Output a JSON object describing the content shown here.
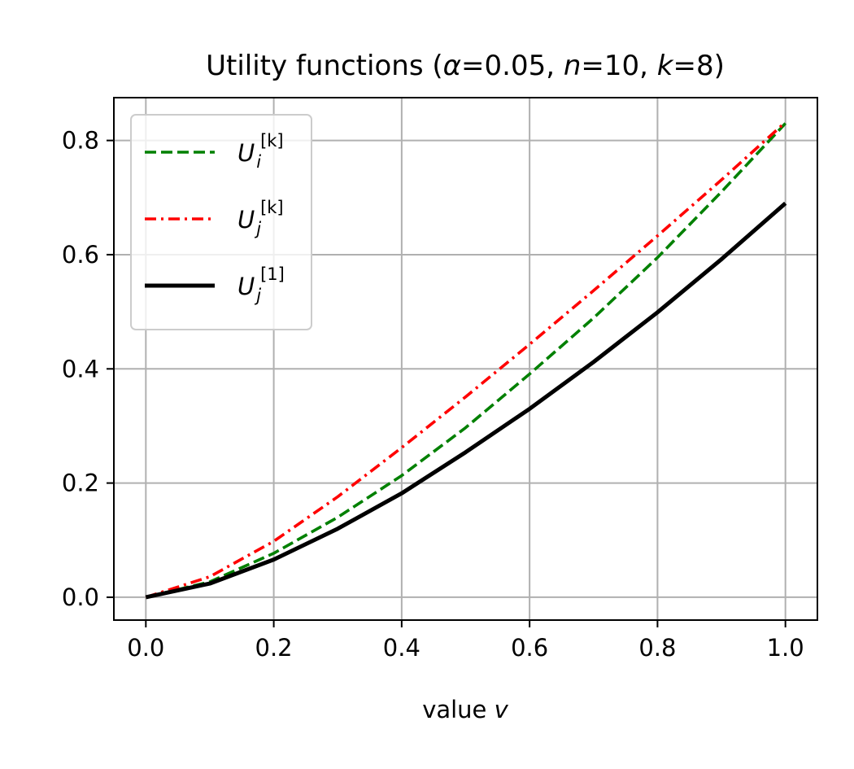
{
  "chart_data": {
    "type": "line",
    "title": {
      "prefix": "Utility functions (",
      "alpha_symbol": "α",
      "alpha_value": "=0.05, ",
      "n_symbol": "n",
      "n_value": "=10, ",
      "k_symbol": "k",
      "k_value": "=8)"
    },
    "xlabel": {
      "text": "value ",
      "var": "v"
    },
    "ylabel": "",
    "xlim": [
      -0.05,
      1.05
    ],
    "ylim": [
      -0.04,
      0.875
    ],
    "xticks": [
      0.0,
      0.2,
      0.4,
      0.6,
      0.8,
      1.0
    ],
    "xtick_labels": [
      "0.0",
      "0.2",
      "0.4",
      "0.6",
      "0.8",
      "1.0"
    ],
    "yticks": [
      0.0,
      0.2,
      0.4,
      0.6,
      0.8
    ],
    "ytick_labels": [
      "0.0",
      "0.2",
      "0.4",
      "0.6",
      "0.8"
    ],
    "grid": true,
    "legend_position": "top-left",
    "series": [
      {
        "name": "U_i^[k]",
        "label": {
          "base": "U",
          "sub": "i",
          "sup": "[k]"
        },
        "color": "#008000",
        "style": "dashed",
        "x": [
          0.0,
          0.1,
          0.2,
          0.3,
          0.4,
          0.5,
          0.6,
          0.7,
          0.8,
          0.9,
          1.0
        ],
        "y": [
          0.0,
          0.027,
          0.077,
          0.14,
          0.213,
          0.297,
          0.391,
          0.489,
          0.595,
          0.71,
          0.83
        ]
      },
      {
        "name": "U_j^[k]",
        "label": {
          "base": "U",
          "sub": "j",
          "sup": "[k]"
        },
        "color": "#ff0000",
        "style": "dashdot",
        "x": [
          0.0,
          0.1,
          0.2,
          0.3,
          0.4,
          0.5,
          0.6,
          0.7,
          0.8,
          0.9,
          1.0
        ],
        "y": [
          0.0,
          0.036,
          0.098,
          0.176,
          0.262,
          0.351,
          0.443,
          0.537,
          0.633,
          0.731,
          0.832
        ]
      },
      {
        "name": "U_j^[1]",
        "label": {
          "base": "U",
          "sub": "j",
          "sup": "[1]"
        },
        "color": "#000000",
        "style": "solid",
        "x": [
          0.0,
          0.1,
          0.2,
          0.3,
          0.4,
          0.5,
          0.6,
          0.7,
          0.8,
          0.9,
          1.0
        ],
        "y": [
          0.0,
          0.024,
          0.066,
          0.12,
          0.182,
          0.254,
          0.33,
          0.412,
          0.499,
          0.592,
          0.69
        ]
      }
    ]
  }
}
